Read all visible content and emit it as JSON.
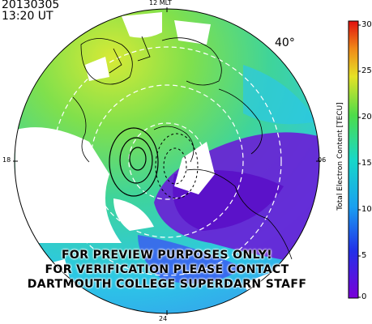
{
  "header": {
    "date": "20130305",
    "time": "13:20 UT"
  },
  "map": {
    "mlt_labels": {
      "top": "12 MLT",
      "left": "18",
      "right": "06",
      "bottom": "24"
    },
    "latitude_label": "40°",
    "colors": {
      "purple": "#6a1dd6",
      "blue": "#2f6cf0",
      "cyan": "#22c8ea",
      "green": "#4fd86a",
      "yellow": "#d7ea36"
    }
  },
  "watermark": {
    "line1": "FOR PREVIEW PURPOSES ONLY!",
    "line2": "FOR VERIFICATION PLEASE CONTACT",
    "line3": "DARTMOUTH COLLEGE SUPERDARN STAFF"
  },
  "colorbar": {
    "title": "Total Electron Content [TECU]",
    "ticks": [
      "30",
      "25",
      "20",
      "15",
      "10",
      "5",
      "0"
    ],
    "range": [
      0,
      30
    ]
  }
}
